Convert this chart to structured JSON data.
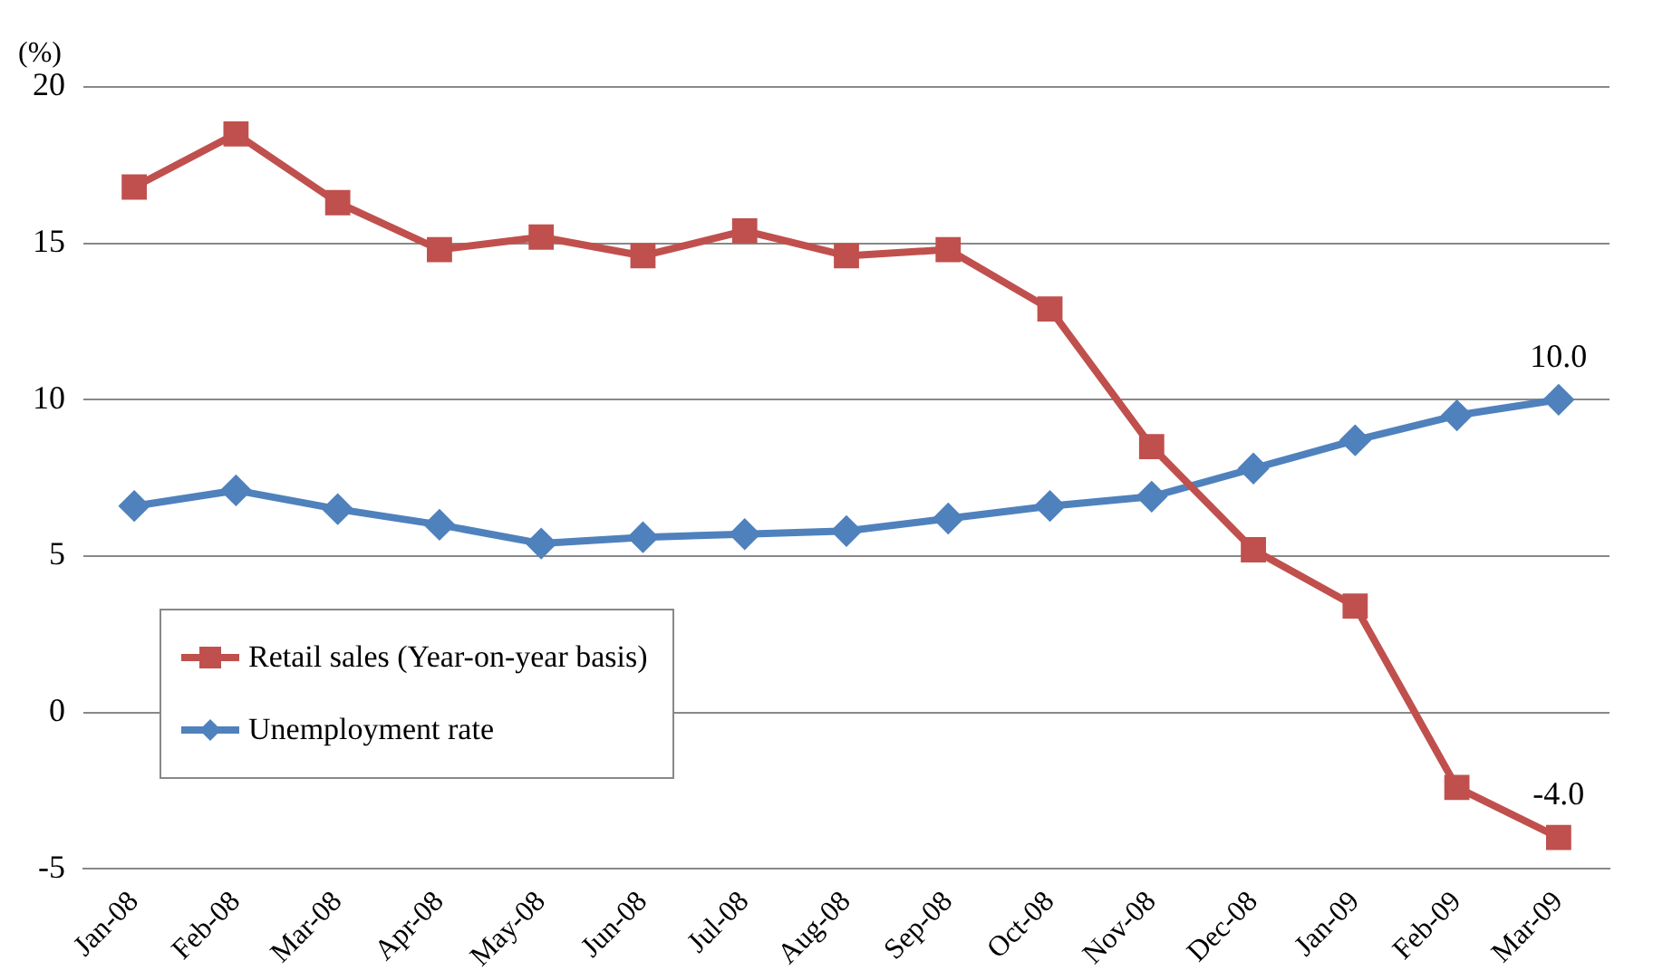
{
  "chart_data": {
    "type": "line",
    "ylabel": "(%)",
    "categories": [
      "Jan-08",
      "Feb-08",
      "Mar-08",
      "Apr-08",
      "May-08",
      "Jun-08",
      "Jul-08",
      "Aug-08",
      "Sep-08",
      "Oct-08",
      "Nov-08",
      "Dec-08",
      "Jan-09",
      "Feb-09",
      "Mar-09"
    ],
    "series": [
      {
        "name": "Retail sales (Year-on-year basis)",
        "color": "#c0504d",
        "marker": "square",
        "values": [
          16.8,
          18.5,
          16.3,
          14.8,
          15.2,
          14.6,
          15.4,
          14.6,
          14.8,
          12.9,
          8.5,
          5.2,
          3.4,
          -2.4,
          -4.0
        ],
        "value_labels": [
          null,
          null,
          null,
          null,
          null,
          null,
          null,
          null,
          null,
          null,
          null,
          null,
          null,
          null,
          "-4.0"
        ]
      },
      {
        "name": "Unemployment rate",
        "color": "#4f81bd",
        "marker": "diamond",
        "values": [
          6.6,
          7.1,
          6.5,
          6.0,
          5.4,
          5.6,
          5.7,
          5.8,
          6.2,
          6.6,
          6.9,
          7.8,
          8.7,
          9.5,
          10.0
        ],
        "value_labels": [
          null,
          null,
          null,
          null,
          null,
          null,
          null,
          null,
          null,
          null,
          null,
          null,
          null,
          null,
          "10.0"
        ]
      }
    ],
    "ylim": [
      -5,
      20
    ],
    "yticks": [
      -5,
      0,
      5,
      10,
      15,
      20
    ],
    "grid": "y",
    "legend": "bottom left"
  }
}
